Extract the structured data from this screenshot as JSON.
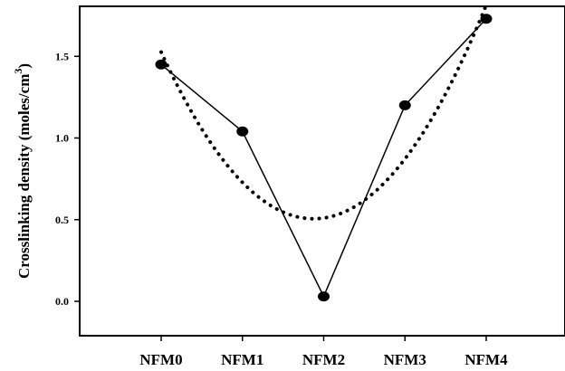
{
  "chart_data": {
    "type": "line",
    "title": "",
    "xlabel": "",
    "ylabel": "Crosslinking density (moles/cm",
    "ylabel_superscript": "3",
    "ylabel_close": ")",
    "categories": [
      "NFM0",
      "NFM1",
      "NFM2",
      "NFM3",
      "NFM4"
    ],
    "series": [
      {
        "values": [
          1.45,
          1.04,
          0.03,
          1.2,
          1.73
        ],
        "style": "solid",
        "marker": "filled-circle",
        "color": "#000000"
      }
    ],
    "trendline": {
      "kind": "quadratic-fit",
      "style": "dotted",
      "color": "#000000"
    },
    "yticks": [
      0.0,
      0.5,
      1.0,
      1.5
    ],
    "ytick_labels": [
      "0.0",
      "0.5",
      "1.0",
      "1.5"
    ],
    "ylim": [
      -0.2,
      1.78
    ],
    "grid": false,
    "legend": "none"
  }
}
